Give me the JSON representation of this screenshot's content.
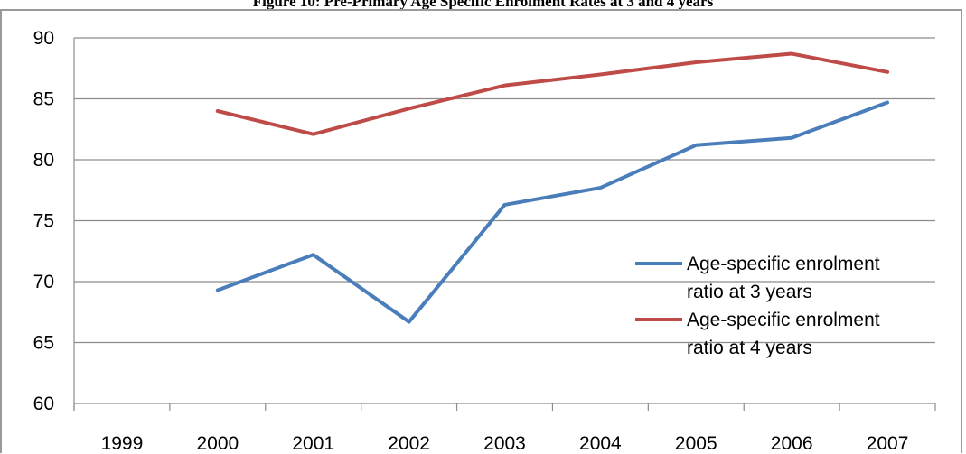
{
  "figure": {
    "title": "Figure 10: Pre-Primary Age Specific Enrolment Rates at 3 and 4 years"
  },
  "chart_data": {
    "type": "line",
    "title": "Figure 10: Pre-Primary Age Specific Enrolment Rates at 3 and 4 years",
    "xlabel": "",
    "ylabel": "",
    "categories": [
      "1999",
      "2000",
      "2001",
      "2002",
      "2003",
      "2004",
      "2005",
      "2006",
      "2007"
    ],
    "ylim": [
      60,
      90
    ],
    "yticks": [
      60,
      65,
      70,
      75,
      80,
      85,
      90
    ],
    "grid": "horizontal",
    "legend_position": "right",
    "series": [
      {
        "name": "Age-specific enrolment ratio at 3 years",
        "legend_lines": [
          "Age-specific enrolment",
          "ratio at 3 years"
        ],
        "color": "#4a7ebb",
        "values": [
          null,
          69.3,
          72.2,
          66.7,
          76.3,
          77.7,
          81.2,
          81.8,
          84.7
        ]
      },
      {
        "name": "Age-specific enrolment ratio at 4 years",
        "legend_lines": [
          "Age-specific enrolment",
          "ratio at 4 years"
        ],
        "color": "#be4b48",
        "values": [
          null,
          84.0,
          82.1,
          84.2,
          86.1,
          87.0,
          88.0,
          88.7,
          87.2
        ]
      }
    ]
  }
}
